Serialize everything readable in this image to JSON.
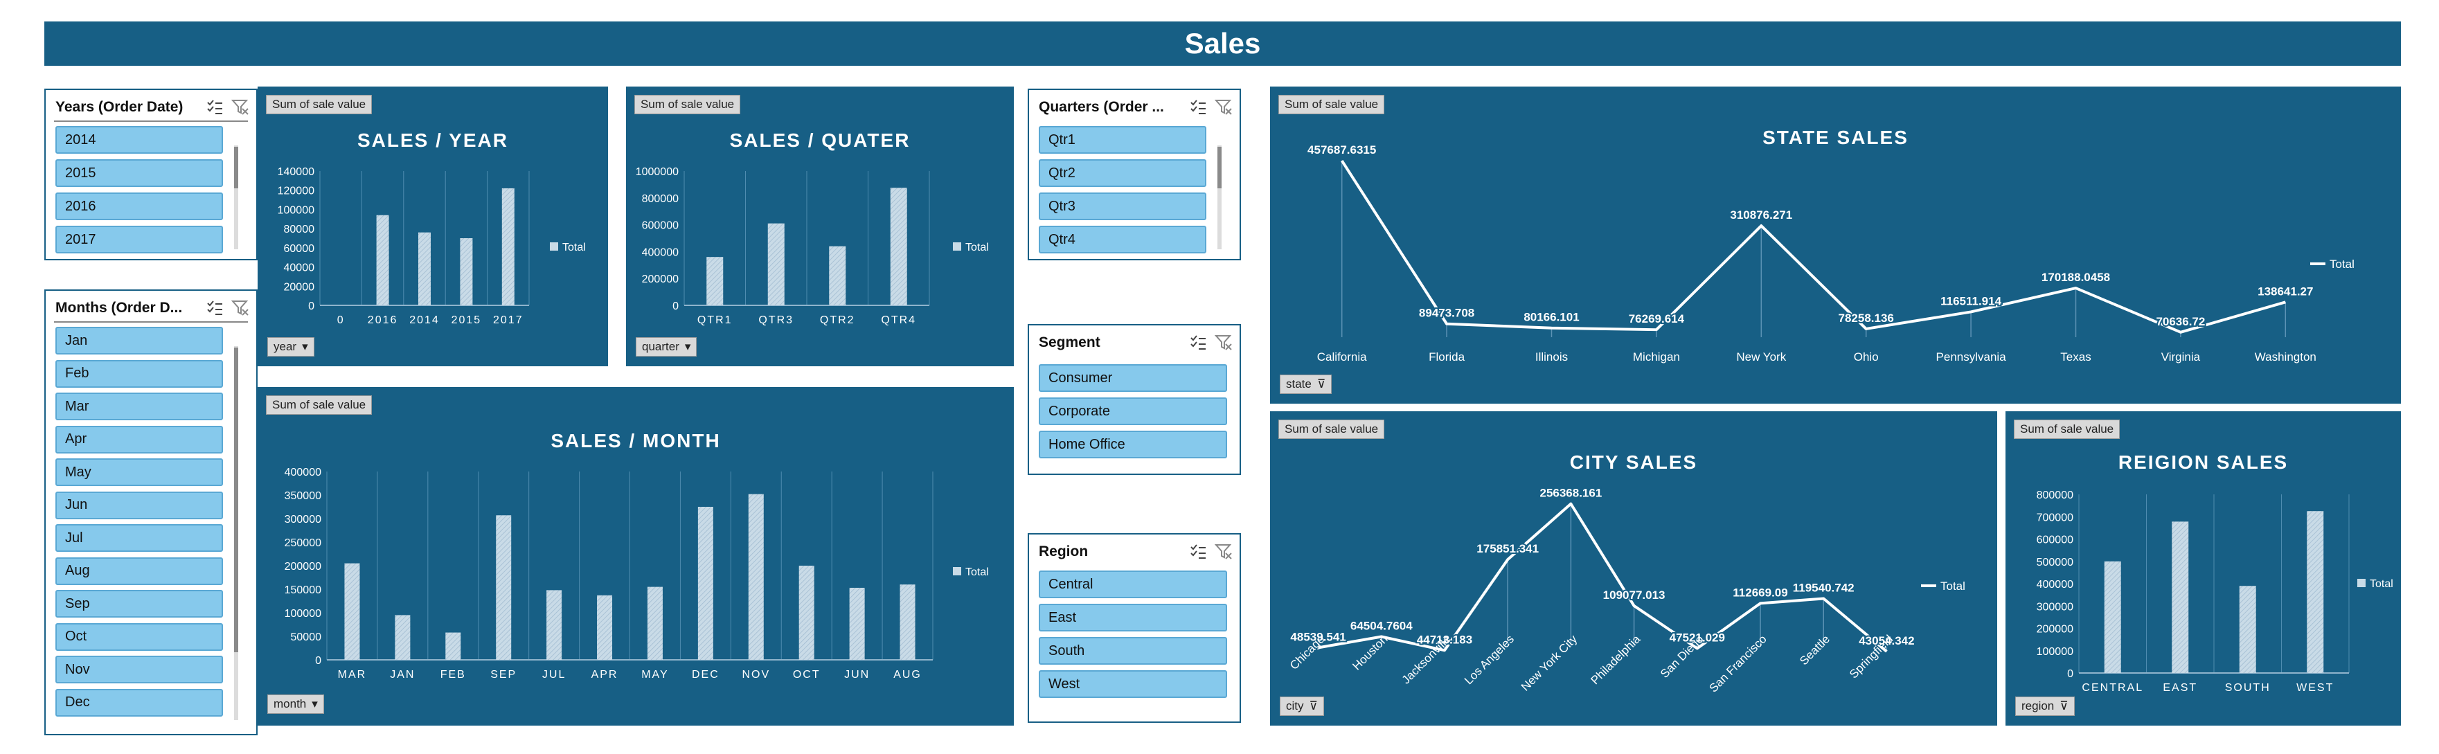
{
  "title": "Sales",
  "colors": {
    "panel": "#175f85",
    "slicer_item": "#86c9ec",
    "bar_fill": "#c9dbe7"
  },
  "icons": {
    "multi_select": "multi-select-icon",
    "clear_filter": "clear-filter-icon",
    "dropdown": "dropdown-arrow-icon"
  },
  "field_button": "Sum of sale value",
  "legend_label": "Total",
  "slicers": {
    "years": {
      "title": "Years (Order Date)",
      "items": [
        "2014",
        "2015",
        "2016",
        "2017"
      ]
    },
    "months": {
      "title": "Months (Order D...",
      "items": [
        "Jan",
        "Feb",
        "Mar",
        "Apr",
        "May",
        "Jun",
        "Jul",
        "Aug",
        "Sep",
        "Oct",
        "Nov",
        "Dec"
      ]
    },
    "quarters": {
      "title": "Quarters (Order ...",
      "items": [
        "Qtr1",
        "Qtr2",
        "Qtr3",
        "Qtr4"
      ]
    },
    "segment": {
      "title": "Segment",
      "items": [
        "Consumer",
        "Corporate",
        "Home Office"
      ]
    },
    "region": {
      "title": "Region",
      "items": [
        "Central",
        "East",
        "South",
        "West"
      ]
    }
  },
  "filters": {
    "year": "year",
    "quarter": "quarter",
    "month": "month",
    "state": "state",
    "city": "city",
    "region": "region"
  },
  "chart_data": [
    {
      "id": "year",
      "type": "bar",
      "title": "SALES / YEAR",
      "categories": [
        "0",
        "2016",
        "2014",
        "2015",
        "2017"
      ],
      "values": [
        0,
        94000,
        76000,
        70000,
        122000
      ],
      "ylim": [
        0,
        140000
      ],
      "yticks": [
        "0",
        "20000",
        "40000",
        "60000",
        "80000",
        "100000",
        "120000",
        "140000"
      ],
      "legend": "right"
    },
    {
      "id": "quarter",
      "type": "bar",
      "title": "SALES / QUATER",
      "categories": [
        "QTR1",
        "QTR3",
        "QTR2",
        "QTR4"
      ],
      "values": [
        360000,
        610000,
        440000,
        875000
      ],
      "ylim": [
        0,
        1000000
      ],
      "yticks": [
        "0",
        "200000",
        "400000",
        "600000",
        "800000",
        "1000000"
      ],
      "legend": "right"
    },
    {
      "id": "month",
      "type": "bar",
      "title": "SALES / MONTH",
      "categories": [
        "MAR",
        "JAN",
        "FEB",
        "SEP",
        "JUL",
        "APR",
        "MAY",
        "DEC",
        "NOV",
        "OCT",
        "JUN",
        "AUG"
      ],
      "values": [
        205000,
        95000,
        58000,
        307000,
        148000,
        137000,
        155000,
        325000,
        352000,
        200000,
        153000,
        160000
      ],
      "ylim": [
        0,
        400000
      ],
      "yticks": [
        "0",
        "50000",
        "100000",
        "150000",
        "200000",
        "250000",
        "300000",
        "350000",
        "400000"
      ],
      "legend": "right"
    },
    {
      "id": "state",
      "type": "line",
      "title": "STATE SALES",
      "categories": [
        "California",
        "Florida",
        "Illinois",
        "Michigan",
        "New York",
        "Ohio",
        "Pennsylvania",
        "Texas",
        "Virginia",
        "Washington"
      ],
      "values": [
        457687.6315,
        89473.708,
        80166.101,
        76269.614,
        310876.271,
        78258.136,
        116511.914,
        170188.0458,
        70636.72,
        138641.27
      ],
      "labels": [
        "457687.6315",
        "89473.708",
        "80166.101",
        "76269.614",
        "310876.271",
        "78258.136",
        "116511.914",
        "170188.0458",
        "70636.72",
        "138641.27"
      ],
      "ylim": [
        0,
        500000
      ],
      "legend": "right"
    },
    {
      "id": "city",
      "type": "line",
      "title": "CITY SALES",
      "categories": [
        "Chicago",
        "Houston",
        "Jacksonville",
        "Los Angeles",
        "New York City",
        "Philadelphia",
        "San Diego",
        "San Francisco",
        "Seattle",
        "Springfield"
      ],
      "values": [
        48539.541,
        64504.7604,
        44713.183,
        175851.341,
        256368.161,
        109077.013,
        47521.029,
        112669.09,
        119540.742,
        43054.342
      ],
      "labels": [
        "48539.541",
        "64504.7604",
        "44713.183",
        "175851.341",
        "256368.161",
        "109077.013",
        "47521.029",
        "112669.09",
        "119540.742",
        "43054.342"
      ],
      "ylim": [
        0,
        300000
      ],
      "legend": "right"
    },
    {
      "id": "region",
      "type": "bar",
      "title": "REIGION SALES",
      "categories": [
        "CENTRAL",
        "EAST",
        "SOUTH",
        "WEST"
      ],
      "values": [
        500000,
        678000,
        390000,
        725000
      ],
      "ylim": [
        0,
        800000
      ],
      "yticks": [
        "0",
        "100000",
        "200000",
        "300000",
        "400000",
        "500000",
        "600000",
        "700000",
        "800000"
      ],
      "legend": "right"
    }
  ]
}
